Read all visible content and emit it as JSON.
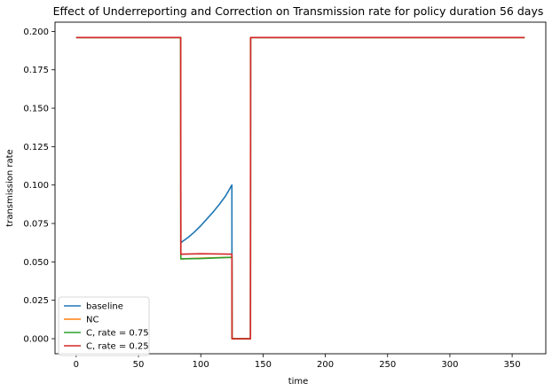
{
  "chart_data": {
    "type": "line",
    "title": "Effect of Underreporting and Correction on Transmission rate for policy duration 56 days",
    "xlabel": "time",
    "ylabel": "transmission rate",
    "xlim": [
      -17,
      377
    ],
    "ylim": [
      -0.0098,
      0.206
    ],
    "xticks": [
      0,
      50,
      100,
      150,
      200,
      250,
      300,
      350
    ],
    "xtick_labels": [
      "0",
      "50",
      "100",
      "150",
      "200",
      "250",
      "300",
      "350"
    ],
    "yticks": [
      0.0,
      0.025,
      0.05,
      0.075,
      0.1,
      0.125,
      0.15,
      0.175,
      0.2
    ],
    "ytick_labels": [
      "0.000",
      "0.025",
      "0.050",
      "0.075",
      "0.100",
      "0.125",
      "0.150",
      "0.175",
      "0.200"
    ],
    "grid": false,
    "legend_position": "lower-left",
    "series": [
      {
        "name": "baseline",
        "color": "#1f77b4",
        "x": [
          0,
          83.9,
          84,
          90,
          95,
          100,
          105,
          110,
          115,
          120,
          125,
          125.1,
          126,
          139.9,
          140,
          360
        ],
        "y": [
          0.196,
          0.196,
          0.0625,
          0.066,
          0.0695,
          0.0735,
          0.078,
          0.0825,
          0.0875,
          0.093,
          0.1,
          0.0,
          0.0,
          0.0,
          0.196,
          0.196
        ]
      },
      {
        "name": "NC",
        "color": "#ff7f0e",
        "x": [
          0,
          83.9,
          84,
          100,
          125,
          125.1,
          126,
          139.9,
          140,
          360
        ],
        "y": [
          0.196,
          0.196,
          0.052,
          0.0524,
          0.053,
          0.0,
          0.0,
          0.0,
          0.196,
          0.196
        ]
      },
      {
        "name": "C, rate = 0.75",
        "color": "#2ca02c",
        "x": [
          0,
          83.9,
          84,
          100,
          125,
          125.1,
          126,
          139.9,
          140,
          360
        ],
        "y": [
          0.196,
          0.196,
          0.052,
          0.0522,
          0.053,
          0.0,
          0.0,
          0.0,
          0.196,
          0.196
        ]
      },
      {
        "name": "C, rate = 0.25",
        "color": "#d62728",
        "x": [
          0,
          83.9,
          84,
          100,
          125,
          125.1,
          126,
          139.9,
          140,
          360
        ],
        "y": [
          0.196,
          0.196,
          0.055,
          0.0553,
          0.055,
          0.0,
          0.0,
          0.0,
          0.196,
          0.196
        ]
      }
    ]
  }
}
